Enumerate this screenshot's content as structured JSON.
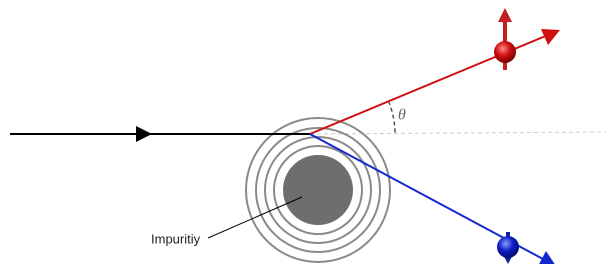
{
  "labels": {
    "angle": "θ",
    "impurity": "Impuritiy"
  }
}
